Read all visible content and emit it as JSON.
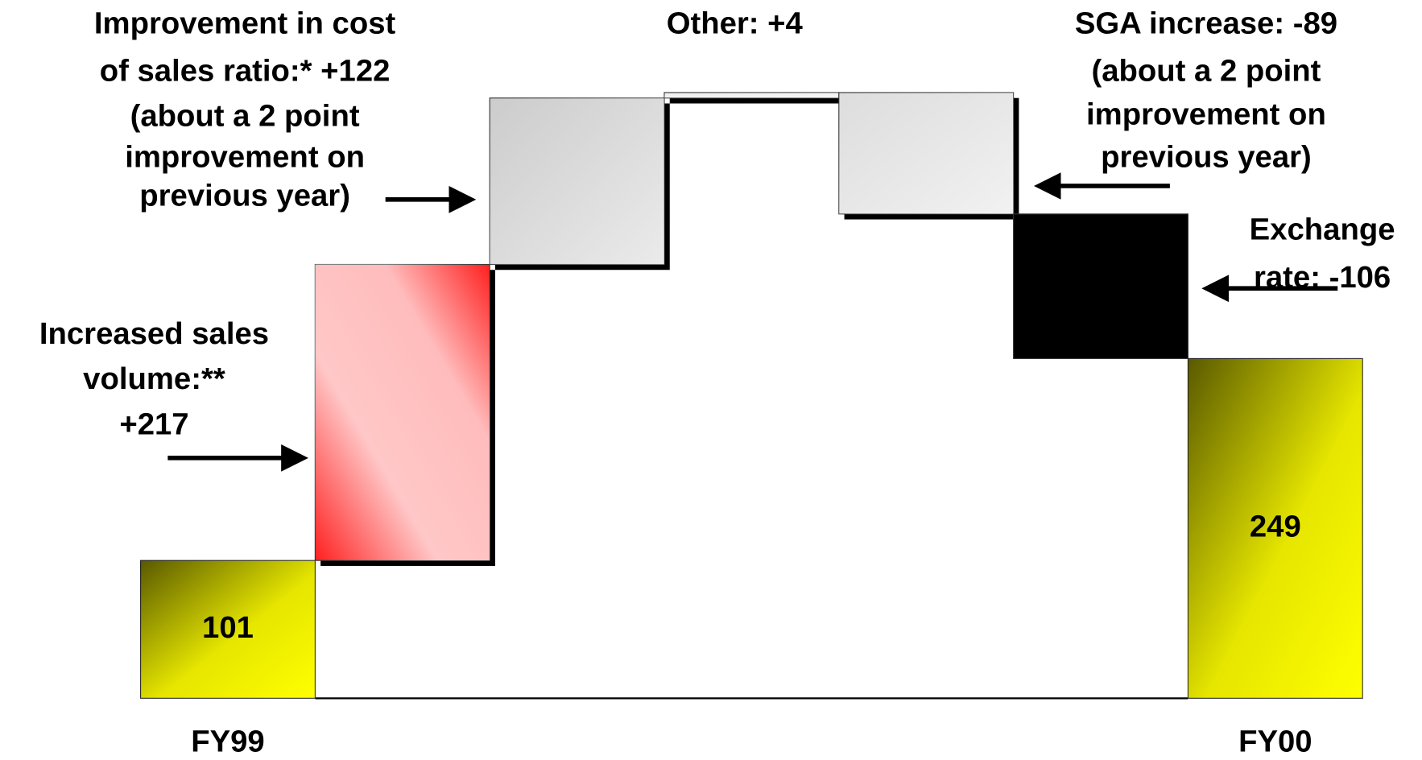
{
  "chart_data": {
    "type": "waterfall",
    "categories": [
      "FY99",
      null,
      null,
      null,
      null,
      null,
      "FY00"
    ],
    "values": [
      101,
      217,
      122,
      4,
      -89,
      -106,
      249
    ],
    "totals": [
      true,
      false,
      false,
      false,
      false,
      false,
      true
    ],
    "colors": [
      "#ffff00",
      "#ff2020",
      "#cccccc",
      "#eeeeee",
      "#dddddd",
      "#000000",
      "#ffff00"
    ],
    "annotations": [
      {
        "lines": [
          "Increased sales",
          "volume:**",
          "+217"
        ]
      },
      {
        "lines": [
          "Improvement in cost",
          "of sales ratio:* +122",
          "(about a 2 point",
          "improvement on",
          "previous year)"
        ]
      },
      {
        "lines": [
          "Other: +4"
        ]
      },
      {
        "lines": [
          "SGA increase: -89",
          "(about a 2 point",
          "improvement on",
          "previous year)"
        ]
      },
      {
        "lines": [
          "Exchange",
          "rate: -106"
        ]
      }
    ]
  }
}
